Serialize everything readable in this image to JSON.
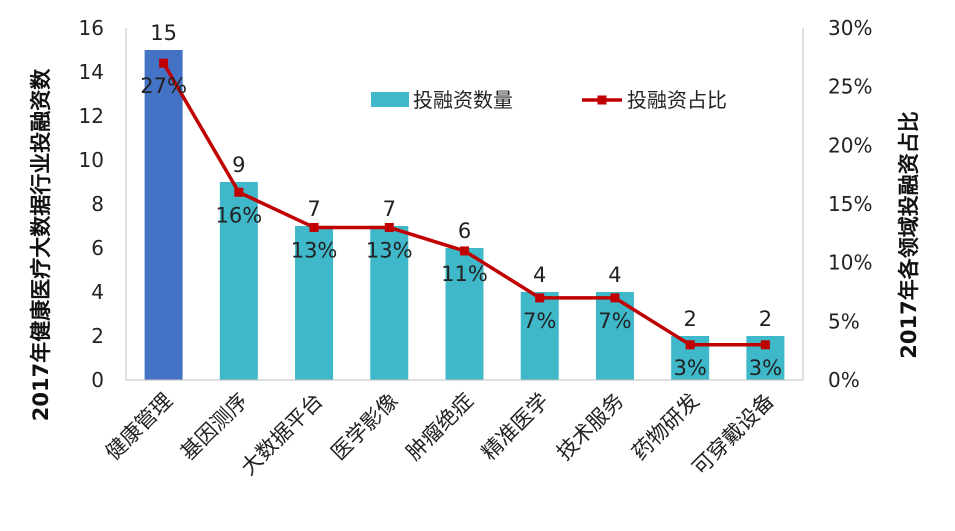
{
  "chart_data": {
    "type": "bar",
    "categories": [
      "健康管理",
      "基因测序",
      "大数据平台",
      "医学影像",
      "肿瘤绝症",
      "精准医学",
      "技术服务",
      "药物研发",
      "可穿戴设备"
    ],
    "series": [
      {
        "name": "投融资数量",
        "type": "bar",
        "axis": "left",
        "values": [
          15,
          9,
          7,
          7,
          6,
          4,
          4,
          2,
          2
        ],
        "value_labels": [
          "15",
          "9",
          "7",
          "7",
          "6",
          "4",
          "4",
          "2",
          "2"
        ],
        "color": "#3fb8c9",
        "highlight_color": "#4472c4",
        "highlight_index": 0
      },
      {
        "name": "投融资占比",
        "type": "line",
        "axis": "right",
        "values": [
          27,
          16,
          13,
          13,
          11,
          7,
          7,
          3,
          3
        ],
        "value_labels": [
          "27%",
          "16%",
          "13%",
          "13%",
          "11%",
          "7%",
          "7%",
          "3%",
          "3%"
        ],
        "color": "#c00000"
      }
    ],
    "ylabel": "2017年健康医疗大数据行业投融资数",
    "y2label": "2017年各领域投融资占比",
    "ylim": [
      0,
      16
    ],
    "yticks": [
      "0",
      "2",
      "4",
      "6",
      "8",
      "10",
      "12",
      "14",
      "16"
    ],
    "y2lim": [
      0,
      30
    ],
    "y2ticks": [
      "0%",
      "5%",
      "10%",
      "15%",
      "20%",
      "25%",
      "30%"
    ],
    "legend_position": "top-right",
    "grid": false
  }
}
